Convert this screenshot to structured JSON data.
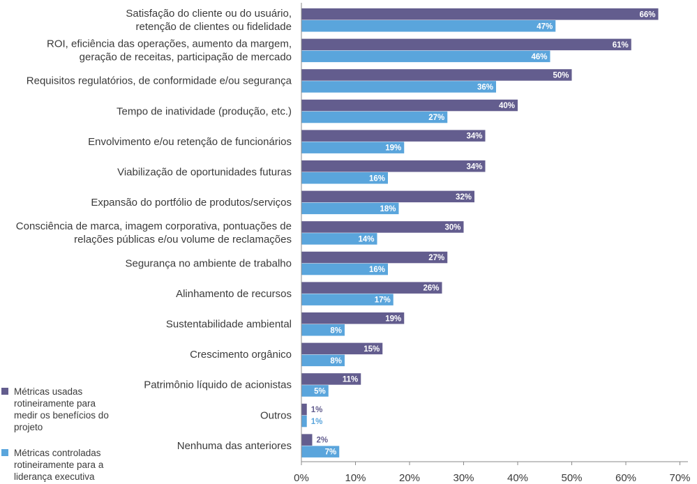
{
  "chart_data": {
    "type": "bar",
    "orientation": "horizontal",
    "categories": [
      [
        "Satisfação do cliente ou do usuário,",
        "retenção de clientes ou fidelidade"
      ],
      [
        "ROI, eficiência das operações, aumento da margem,",
        "geração de receitas, participação de mercado"
      ],
      [
        "Requisitos regulatórios, de conformidade e/ou segurança"
      ],
      [
        "Tempo de inatividade (produção, etc.)"
      ],
      [
        "Envolvimento e/ou retenção de funcionários"
      ],
      [
        "Viabilização de oportunidades futuras"
      ],
      [
        "Expansão do portfólio de produtos/serviços"
      ],
      [
        "Consciência de marca, imagem corporativa, pontuações de",
        "relações públicas e/ou volume de reclamações"
      ],
      [
        "Segurança no ambiente de trabalho"
      ],
      [
        "Alinhamento de recursos"
      ],
      [
        "Sustentabilidade ambiental"
      ],
      [
        "Crescimento orgânico"
      ],
      [
        "Patrimônio líquido de acionistas"
      ],
      [
        "Outros"
      ],
      [
        "Nenhuma das anteriores"
      ]
    ],
    "series": [
      {
        "name": "Métricas usadas rotineiramente para medir os benefícios do projeto",
        "color": "#635d8e",
        "values": [
          66,
          61,
          50,
          40,
          34,
          34,
          32,
          30,
          27,
          26,
          19,
          15,
          11,
          1,
          2
        ]
      },
      {
        "name": "Métricas controladas rotineiramente para a liderança executiva",
        "color": "#5aa5dc",
        "values": [
          47,
          46,
          36,
          27,
          19,
          16,
          18,
          14,
          16,
          17,
          8,
          8,
          5,
          1,
          7
        ]
      }
    ],
    "value_suffix": "%",
    "xlim": [
      0,
      70
    ],
    "xticks": [
      0,
      10,
      20,
      30,
      40,
      50,
      60,
      70
    ],
    "tick_labels": [
      "0%",
      "10%",
      "20%",
      "30%",
      "40%",
      "50%",
      "60%",
      "70%"
    ],
    "grid": false,
    "legend_position": "bottom-left"
  },
  "legend": {
    "series1_lines": [
      "Métricas usadas",
      "rotineiramente para",
      "medir os benefícios do",
      "projeto"
    ],
    "series2_lines": [
      "Métricas controladas",
      "rotineiramente para a",
      "liderança executiva"
    ]
  },
  "colors": {
    "axis": "#8a8a8a",
    "text": "#3a3a3a",
    "label_on_bar": "#ffffff"
  }
}
